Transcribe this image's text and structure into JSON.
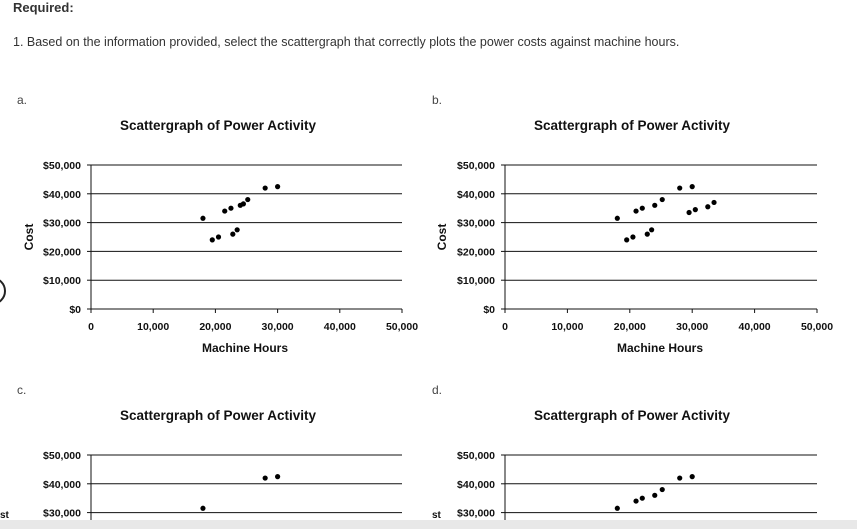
{
  "header": {
    "required": "Required:",
    "question": "1. Based on the information provided, select the scattergraph that correctly plots the power costs against machine hours."
  },
  "options": [
    {
      "label": "a.",
      "title": "Scattergraph of Power Activity",
      "xlabel": "Machine Hours",
      "ylabel": "Cost",
      "xticks": [
        "0",
        "10,000",
        "20,000",
        "30,000",
        "40,000",
        "50,000"
      ],
      "yticks": [
        "$0",
        "$10,000",
        "$20,000",
        "$30,000",
        "$40,000",
        "$50,000"
      ]
    },
    {
      "label": "b.",
      "title": "Scattergraph of Power Activity",
      "xlabel": "Machine Hours",
      "ylabel": "Cost",
      "xticks": [
        "0",
        "10,000",
        "20,000",
        "30,000",
        "40,000",
        "50,000"
      ],
      "yticks": [
        "$0",
        "$10,000",
        "$20,000",
        "$30,000",
        "$40,000",
        "$50,000"
      ]
    },
    {
      "label": "c.",
      "title": "Scattergraph of Power Activity",
      "ylabel_partial": "st",
      "yticks": [
        "$30,000",
        "$40,000",
        "$50,000"
      ]
    },
    {
      "label": "d.",
      "title": "Scattergraph of Power Activity",
      "ylabel_partial": "st",
      "yticks": [
        "$30,000",
        "$40,000",
        "$50,000"
      ]
    }
  ],
  "chart_data": [
    {
      "type": "scatter",
      "title": "Scattergraph of Power Activity",
      "xlabel": "Machine Hours",
      "ylabel": "Cost",
      "xlim": [
        0,
        50000
      ],
      "ylim": [
        0,
        50000
      ],
      "x": [
        18000,
        19500,
        20500,
        21500,
        22500,
        23500,
        24500,
        22800,
        24000,
        25200,
        28000,
        30000
      ],
      "y": [
        31500,
        24000,
        25000,
        34000,
        35000,
        27500,
        36500,
        26000,
        36000,
        38000,
        42000,
        42500
      ]
    },
    {
      "type": "scatter",
      "title": "Scattergraph of Power Activity",
      "xlabel": "Machine Hours",
      "ylabel": "Cost",
      "xlim": [
        0,
        50000
      ],
      "ylim": [
        0,
        50000
      ],
      "x": [
        18000,
        19500,
        20500,
        21000,
        22000,
        23500,
        22800,
        24000,
        25200,
        28000,
        30000,
        29500,
        30500,
        32500,
        33500
      ],
      "y": [
        31500,
        24000,
        25000,
        34000,
        35000,
        27500,
        26000,
        36000,
        38000,
        42000,
        42500,
        33500,
        34500,
        35500,
        37000
      ]
    },
    {
      "type": "scatter",
      "title": "Scattergraph of Power Activity",
      "ylim": [
        0,
        50000
      ],
      "x": [
        18000,
        28000,
        30000
      ],
      "y": [
        31500,
        42000,
        42500
      ]
    },
    {
      "type": "scatter",
      "title": "Scattergraph of Power Activity",
      "ylim": [
        0,
        50000
      ],
      "x": [
        18000,
        21000,
        22000,
        24000,
        25200,
        28000,
        30000
      ],
      "y": [
        31500,
        34000,
        35000,
        36000,
        38000,
        42000,
        42500
      ]
    }
  ]
}
